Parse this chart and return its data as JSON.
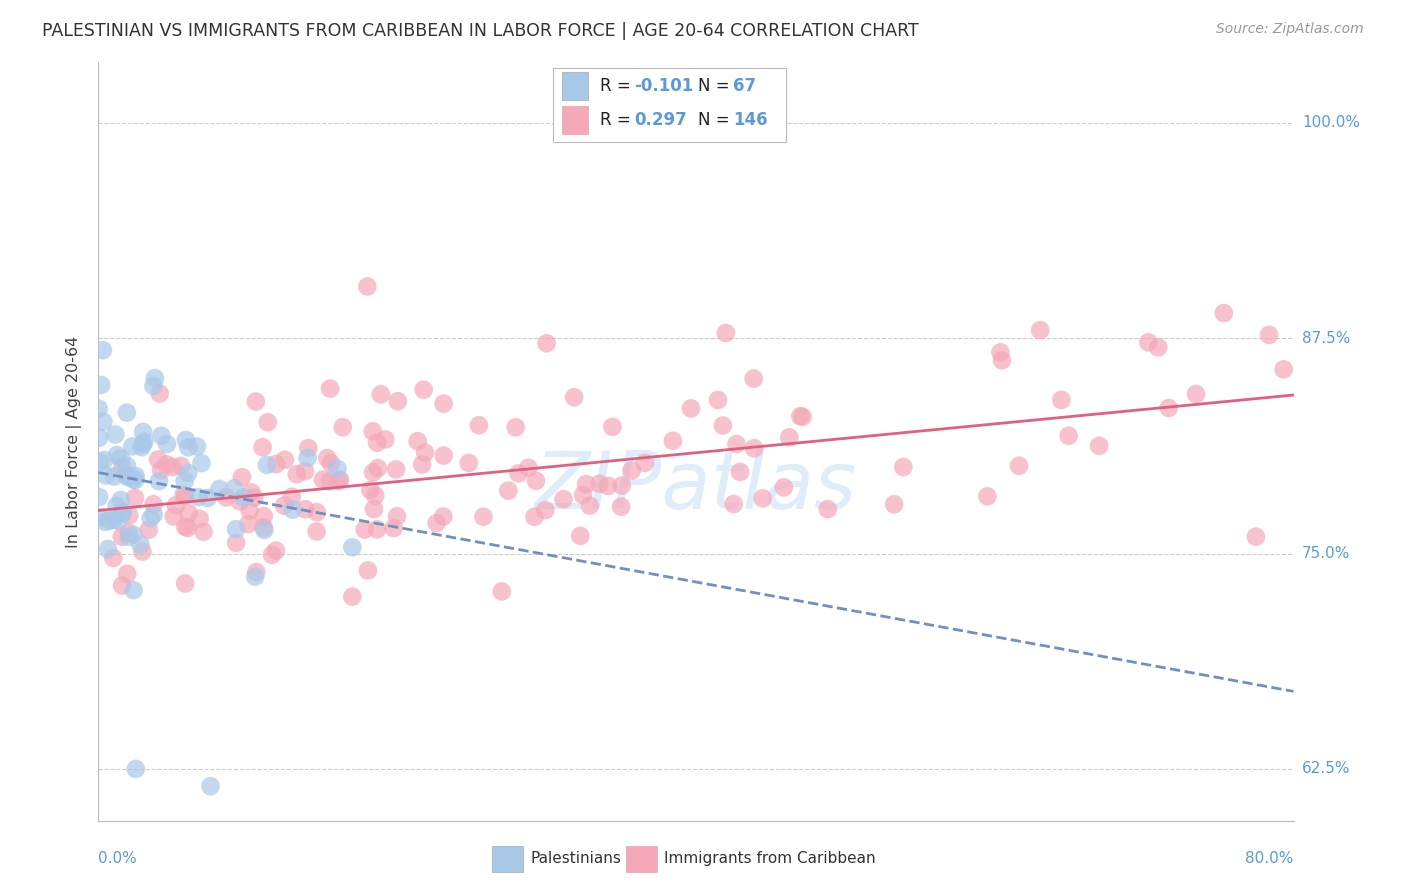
{
  "title": "PALESTINIAN VS IMMIGRANTS FROM CARIBBEAN IN LABOR FORCE | AGE 20-64 CORRELATION CHART",
  "source": "Source: ZipAtlas.com",
  "ylabel": "In Labor Force | Age 20-64",
  "ytick_vals": [
    0.625,
    0.75,
    0.875,
    1.0
  ],
  "ytick_labels": [
    "62.5%",
    "75.0%",
    "87.5%",
    "100.0%"
  ],
  "xlim": [
    0.0,
    0.8
  ],
  "ylim": [
    0.595,
    1.035
  ],
  "color_blue": "#a8c8e8",
  "color_pink": "#f4a8b8",
  "color_blue_line": "#7090c0",
  "color_pink_line": "#e06080",
  "color_axis_text": "#5b9bd5",
  "watermark": "ZIPatlas",
  "pal_trend_x0": 0.0,
  "pal_trend_y0": 0.797,
  "pal_trend_x1": 0.8,
  "pal_trend_y1": 0.67,
  "car_trend_x0": 0.0,
  "car_trend_y0": 0.775,
  "car_trend_x1": 0.8,
  "car_trend_y1": 0.842
}
